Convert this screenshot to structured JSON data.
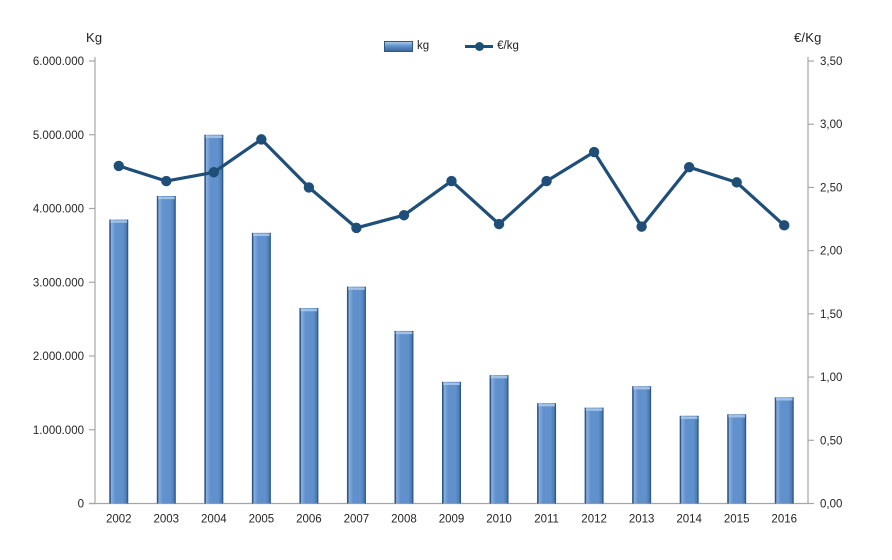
{
  "chart_data": {
    "type": "combo",
    "categories": [
      "2002",
      "2003",
      "2004",
      "2005",
      "2006",
      "2007",
      "2008",
      "2009",
      "2010",
      "2011",
      "2012",
      "2013",
      "2014",
      "2015",
      "2016"
    ],
    "series": [
      {
        "name": "kg",
        "type": "bar",
        "axis": "left",
        "color": "#6191cc",
        "values": [
          3850000,
          4170000,
          5000000,
          3670000,
          2650000,
          2940000,
          2340000,
          1650000,
          1740000,
          1360000,
          1300000,
          1590000,
          1190000,
          1210000,
          1440000
        ]
      },
      {
        "name": "€/kg",
        "type": "line",
        "axis": "right",
        "color": "#1f4e79",
        "values": [
          2.67,
          2.55,
          2.62,
          2.88,
          2.5,
          2.18,
          2.28,
          2.55,
          2.21,
          2.55,
          2.78,
          2.19,
          2.66,
          2.54,
          2.2
        ]
      }
    ],
    "left_axis": {
      "title": "Kg",
      "min": 0,
      "max": 6000000,
      "tick_interval": 1000000,
      "tick_labels": [
        "0",
        "1.000.000",
        "2.000.000",
        "3.000.000",
        "4.000.000",
        "5.000.000",
        "6.000.000"
      ]
    },
    "right_axis": {
      "title": "€/Kg",
      "min": 0,
      "max": 3.5,
      "tick_interval": 0.5,
      "tick_labels": [
        "0,00",
        "0,50",
        "1,00",
        "1,50",
        "2,00",
        "2,50",
        "3,00",
        "3,50"
      ]
    },
    "legend": {
      "position": "top"
    },
    "grid": false,
    "colors": {
      "bar_edge": "#2e5786",
      "bar_light": "#8ab0e0",
      "bar_mid": "#6191cc",
      "bar_dark": "#4d7cb4",
      "bar_highlight": "#a9c7ea",
      "line": "#1f4e79",
      "axis_line": "#a6a6a6",
      "text": "#262626"
    }
  }
}
